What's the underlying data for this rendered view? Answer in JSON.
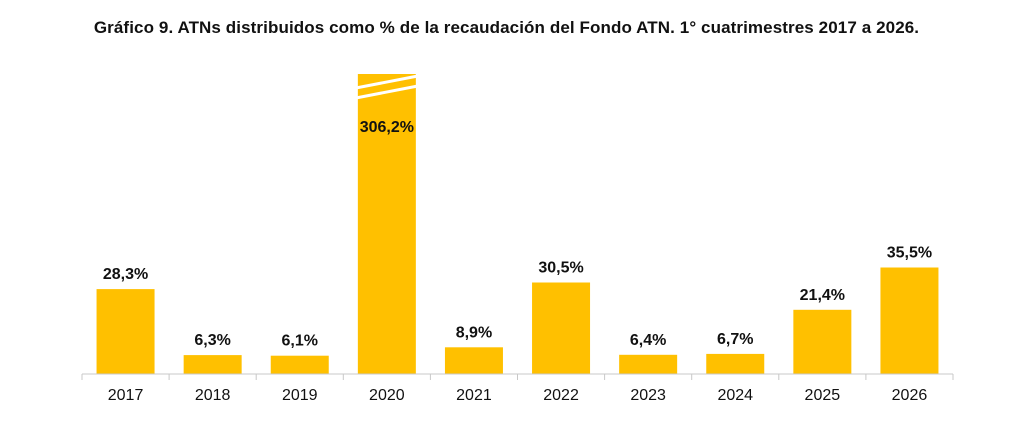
{
  "chart_data": {
    "type": "bar",
    "title": "Gráfico 9. ATNs distribuidos como % de la recaudación del Fondo ATN. 1° cuatrimestres 2017 a 2026.",
    "xlabel": "",
    "ylabel": "",
    "categories": [
      "2017",
      "2018",
      "2019",
      "2020",
      "2021",
      "2022",
      "2023",
      "2024",
      "2025",
      "2026"
    ],
    "values": [
      28.3,
      6.3,
      6.1,
      306.2,
      8.9,
      30.5,
      6.4,
      6.7,
      21.4,
      35.5
    ],
    "data_labels": [
      "28,3%",
      "6,3%",
      "6,1%",
      "306,2%",
      "8,9%",
      "30,5%",
      "6,4%",
      "6,7%",
      "21,4%",
      "35,5%"
    ],
    "ylim": [
      0,
      40
    ],
    "axis_break": {
      "category": "2020"
    },
    "bar_color": "#FFC000",
    "grid": false,
    "legend": "none"
  }
}
